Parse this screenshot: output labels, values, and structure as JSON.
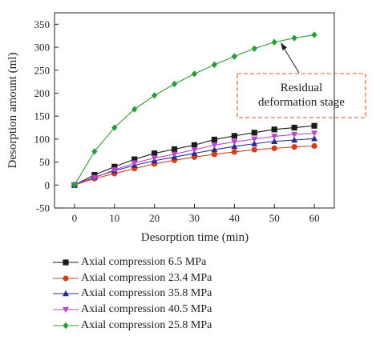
{
  "chart_data": {
    "type": "line",
    "xlabel": "Desorption time (min)",
    "ylabel": "Desorption amount (ml)",
    "xlim": [
      -5,
      65
    ],
    "ylim": [
      -50,
      375
    ],
    "xticks": [
      0,
      10,
      20,
      30,
      40,
      50,
      60
    ],
    "yticks": [
      -50,
      0,
      50,
      100,
      150,
      200,
      250,
      300,
      350
    ],
    "grid": false,
    "legend_position": "below",
    "x": [
      0,
      5,
      10,
      15,
      20,
      25,
      30,
      35,
      40,
      45,
      50,
      55,
      60
    ],
    "series": [
      {
        "name": "Axial compression 6.5 MPa",
        "color": "#1a1a1a",
        "marker": "square",
        "values": [
          0,
          22,
          40,
          56,
          69,
          78,
          87,
          99,
          107,
          114,
          121,
          125,
          129
        ]
      },
      {
        "name": "Axial compression 23.4 MPa",
        "color": "#d2401f",
        "marker": "circle",
        "values": [
          0,
          14,
          25,
          36,
          46,
          54,
          61,
          67,
          72,
          77,
          80,
          83,
          85
        ]
      },
      {
        "name": "Axial compression 35.8 MPa",
        "color": "#2a2a8a",
        "marker": "triangle-up",
        "values": [
          0,
          17,
          31,
          43,
          53,
          61,
          69,
          77,
          84,
          90,
          95,
          98,
          101
        ]
      },
      {
        "name": "Axial compression 40.5 MPa",
        "color": "#b848c8",
        "marker": "triangle-down",
        "values": [
          0,
          16,
          33,
          48,
          59,
          67,
          77,
          87,
          94,
          100,
          106,
          110,
          113
        ]
      },
      {
        "name": "Axial compression 25.8 MPa",
        "color": "#2d9a3a",
        "marker": "diamond",
        "values": [
          0,
          73,
          125,
          165,
          195,
          220,
          242,
          262,
          280,
          297,
          311,
          320,
          327
        ]
      }
    ],
    "annotations": [
      {
        "text_lines": [
          "Residual",
          "deformation stage"
        ]
      }
    ]
  }
}
